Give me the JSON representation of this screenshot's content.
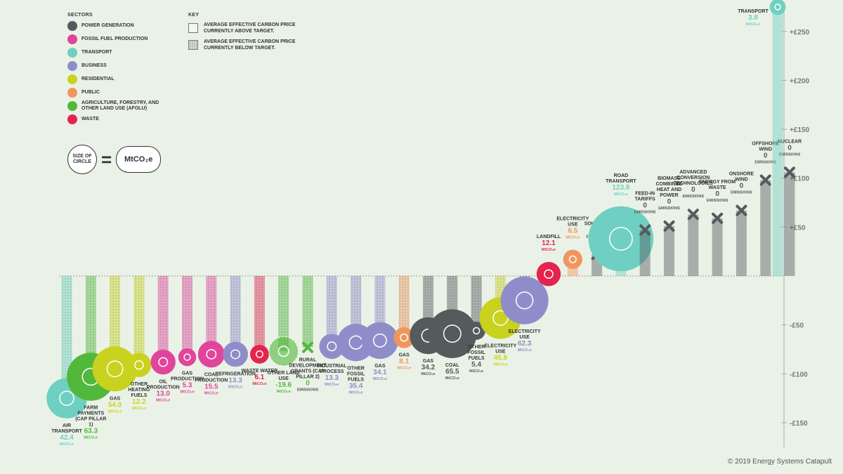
{
  "legend": {
    "title": "SECTORS",
    "items": [
      {
        "label": "POWER GENERATION",
        "color": "#555a5d"
      },
      {
        "label": "FOSSIL FUEL PRODUCTION",
        "color": "#e1459b"
      },
      {
        "label": "TRANSPORT",
        "color": "#6fcfc2"
      },
      {
        "label": "BUSINESS",
        "color": "#8f8dc9"
      },
      {
        "label": "RESIDENTIAL",
        "color": "#c9d21e"
      },
      {
        "label": "PUBLIC",
        "color": "#f1955e"
      },
      {
        "label": "AGRICULTURE, FORESTRY, AND OTHER LAND USE (AFOLU)",
        "color": "#52b83c"
      },
      {
        "label": "WASTE",
        "color": "#e4234f"
      }
    ]
  },
  "key": {
    "title": "KEY",
    "above": "AVERAGE EFFECTIVE CARBON PRICE CURRENTLY ABOVE TARGET.",
    "below": "AVERAGE EFFECTIVE CARBON PRICE CURRENTLY BELOW TARGET."
  },
  "size_key": {
    "circle": "SIZE OF CIRCLE",
    "equals": "=",
    "unit": "MtCO₂e"
  },
  "copyright": "© 2019 Energy Systems Catapult",
  "chart_data": {
    "type": "bar",
    "ylim": [
      -175,
      280
    ],
    "y_ticks": [
      {
        "value": 250,
        "label": "+£250"
      },
      {
        "value": 200,
        "label": "+£200"
      },
      {
        "value": 150,
        "label": "+£150"
      },
      {
        "value": 100,
        "label": "+£100"
      },
      {
        "value": 50,
        "label": "+£50"
      },
      {
        "value": -50,
        "label": "-£50"
      },
      {
        "value": -100,
        "label": "-£100"
      },
      {
        "value": -150,
        "label": "-£150"
      }
    ],
    "unit_label": "MtCO₂e",
    "emissions_label": "EMISSIONS",
    "bars": [
      {
        "label": "AIR TRANSPORT",
        "value": -125,
        "emissions": "42.4",
        "sector": "transport",
        "color": "#6fcfc2"
      },
      {
        "label": "FARM PAYMENTS (CAP PILLAR 1)",
        "value": -103,
        "emissions": "63.3",
        "sector": "afolu",
        "color": "#52b83c"
      },
      {
        "label": "GAS",
        "value": -95,
        "emissions": "54.0",
        "sector": "residential",
        "color": "#c9d21e"
      },
      {
        "label": "OTHER HEATING FUELS",
        "value": -91,
        "emissions": "12.2",
        "sector": "residential",
        "color": "#c9d21e"
      },
      {
        "label": "OIL PRODUCTION",
        "value": -88,
        "emissions": "13.0",
        "sector": "fossil",
        "color": "#e1459b"
      },
      {
        "label": "GAS PRODUCTION",
        "value": -83,
        "emissions": "5.3",
        "sector": "fossil",
        "color": "#e1459b"
      },
      {
        "label": "COAL PRODUCTION",
        "value": -80,
        "emissions": "15.5",
        "sector": "fossil",
        "color": "#e1459b"
      },
      {
        "label": "REFRIGERATION",
        "value": -80,
        "emissions": "13.3",
        "sector": "business",
        "color": "#8f8dc9"
      },
      {
        "label": "WASTE WATER",
        "value": -80,
        "emissions": "6.1",
        "sector": "waste",
        "color": "#e4234f"
      },
      {
        "label": "OTHER LAND USE",
        "value": -77,
        "emissions": "-19.6",
        "sector": "afolu",
        "color": "#52b83c"
      },
      {
        "label": "RURAL DEVELOPMENT GRANTS (CAP PILLAR 2)",
        "value": -73,
        "emissions": "0",
        "sector": "afolu",
        "color": "#52b83c",
        "cross": true
      },
      {
        "label": "INDUSTRIAL PROCESS",
        "value": -72,
        "emissions": "13.3",
        "sector": "business",
        "color": "#8f8dc9"
      },
      {
        "label": "OTHER FOSSIL FUELS",
        "value": -68,
        "emissions": "35.4",
        "sector": "business",
        "color": "#8f8dc9"
      },
      {
        "label": "GAS",
        "value": -66,
        "emissions": "34.1",
        "sector": "business",
        "color": "#8f8dc9"
      },
      {
        "label": "GAS",
        "value": -63,
        "emissions": "8.1",
        "sector": "public",
        "color": "#f1955e"
      },
      {
        "label": "GAS",
        "value": -61,
        "emissions": "34.2",
        "sector": "power",
        "color": "#555a5d"
      },
      {
        "label": "COAL",
        "value": -59,
        "emissions": "65.5",
        "sector": "power",
        "color": "#555a5d"
      },
      {
        "label": "OTHER FOSSIL FUELS",
        "value": -56,
        "emissions": "5.4",
        "sector": "power",
        "color": "#555a5d"
      },
      {
        "label": "ELECTRICITY USE",
        "value": -43,
        "emissions": "45.8",
        "sector": "residential",
        "color": "#c9d21e"
      },
      {
        "label": "ELECTRICITY USE",
        "value": -25,
        "emissions": "62.3",
        "sector": "business",
        "color": "#8f8dc9"
      },
      {
        "label": "LANDFILL",
        "value": 2,
        "emissions": "12.1",
        "sector": "waste",
        "color": "#e4234f"
      },
      {
        "label": "ELECTRICITY USE",
        "value": 17,
        "emissions": "6.5",
        "sector": "public",
        "color": "#f1955e"
      },
      {
        "label": "SOLAR PV",
        "value": 22,
        "emissions": "0",
        "sector": "power",
        "color": "#555a5d",
        "cross": true
      },
      {
        "label": "ROAD TRANSPORT",
        "value": 38,
        "emissions": "123.8",
        "sector": "transport",
        "color": "#6fcfc2"
      },
      {
        "label": "FEED-IN TARIFFS",
        "value": 47,
        "emissions": "0",
        "sector": "power",
        "color": "#555a5d",
        "cross": true
      },
      {
        "label": "BIOMASS COMBINED HEAT AND POWER",
        "value": 51,
        "emissions": "0",
        "sector": "power",
        "color": "#555a5d",
        "cross": true
      },
      {
        "label": "ADVANCED CONVERSION TECHNOLOGIES",
        "value": 63,
        "emissions": "0",
        "sector": "power",
        "color": "#555a5d",
        "cross": true
      },
      {
        "label": "ENERGY FROM WASTE",
        "value": 59,
        "emissions": "0",
        "sector": "power",
        "color": "#555a5d",
        "cross": true
      },
      {
        "label": "ONSHORE WIND",
        "value": 67,
        "emissions": "0",
        "sector": "power",
        "color": "#555a5d",
        "cross": true
      },
      {
        "label": "OFFSHORE WIND",
        "value": 98,
        "emissions": "0",
        "sector": "power",
        "color": "#555a5d",
        "cross": true
      },
      {
        "label": "NUCLEAR",
        "value": 106,
        "emissions": "0",
        "sector": "power",
        "color": "#555a5d",
        "cross": true
      },
      {
        "label": "TRANSPORT",
        "value": 275,
        "emissions": "3.8",
        "sector": "transport",
        "color": "#6fcfc2"
      }
    ]
  }
}
